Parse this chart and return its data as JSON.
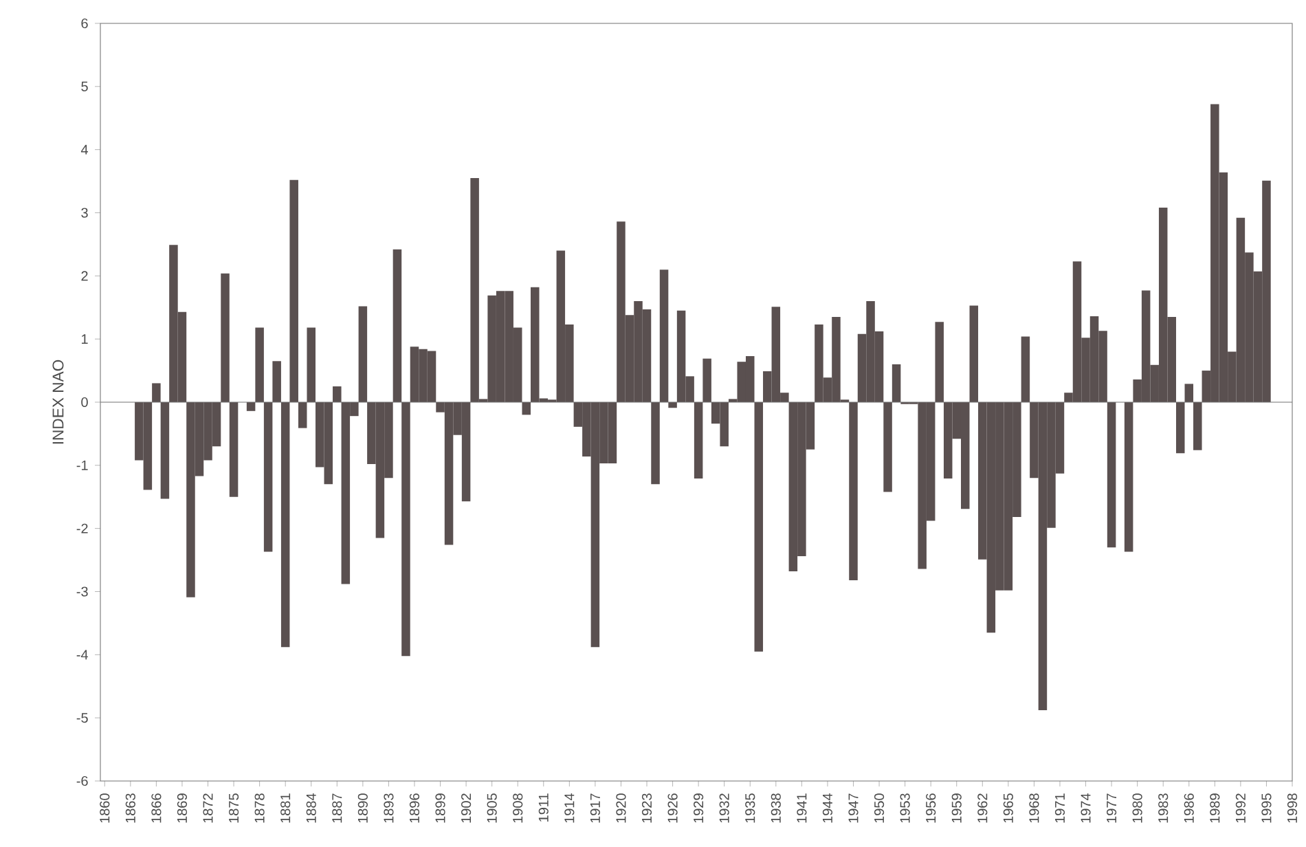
{
  "chart_data": {
    "type": "bar",
    "ylabel": "INDEX NAO",
    "color": "#5a5050",
    "x": [
      1864,
      1865,
      1866,
      1867,
      1868,
      1869,
      1870,
      1871,
      1872,
      1873,
      1874,
      1875,
      1876,
      1877,
      1878,
      1879,
      1880,
      1881,
      1882,
      1883,
      1884,
      1885,
      1886,
      1887,
      1888,
      1889,
      1890,
      1891,
      1892,
      1893,
      1894,
      1895,
      1896,
      1897,
      1898,
      1899,
      1900,
      1901,
      1902,
      1903,
      1904,
      1905,
      1906,
      1907,
      1908,
      1909,
      1910,
      1911,
      1912,
      1913,
      1914,
      1915,
      1916,
      1917,
      1918,
      1919,
      1920,
      1921,
      1922,
      1923,
      1924,
      1925,
      1926,
      1927,
      1928,
      1929,
      1930,
      1931,
      1932,
      1933,
      1934,
      1935,
      1936,
      1937,
      1938,
      1939,
      1940,
      1941,
      1942,
      1943,
      1944,
      1945,
      1946,
      1947,
      1948,
      1949,
      1950,
      1951,
      1952,
      1953,
      1954,
      1955,
      1956,
      1957,
      1958,
      1959,
      1960,
      1961,
      1962,
      1963,
      1964,
      1965,
      1966,
      1967,
      1968,
      1969,
      1970,
      1971,
      1972,
      1973,
      1974,
      1975,
      1976,
      1977,
      1978,
      1979,
      1980,
      1981,
      1982,
      1983,
      1984,
      1985,
      1986,
      1987,
      1988,
      1989,
      1990,
      1991,
      1992,
      1993,
      1994,
      1995
    ],
    "values": [
      -0.92,
      -1.39,
      0.3,
      -1.53,
      2.49,
      1.43,
      -3.09,
      -1.17,
      -0.92,
      -0.7,
      2.04,
      -1.5,
      0.0,
      -0.14,
      1.18,
      -2.37,
      0.65,
      -3.88,
      3.52,
      -0.41,
      1.18,
      -1.03,
      -1.3,
      0.25,
      -2.88,
      -0.22,
      1.52,
      -0.98,
      -2.15,
      -1.2,
      2.42,
      -4.02,
      0.88,
      0.84,
      0.81,
      -0.16,
      -2.26,
      -0.52,
      -1.57,
      3.55,
      0.05,
      1.69,
      1.76,
      1.76,
      1.18,
      -0.2,
      1.82,
      0.06,
      0.04,
      2.4,
      1.23,
      -0.39,
      -0.86,
      -3.88,
      -0.97,
      -0.97,
      2.86,
      1.38,
      1.6,
      1.47,
      -1.3,
      2.1,
      -0.09,
      1.45,
      0.41,
      -1.21,
      0.69,
      -0.34,
      -0.7,
      0.05,
      0.64,
      0.73,
      -3.95,
      0.49,
      1.51,
      0.15,
      -2.68,
      -2.44,
      -0.75,
      1.23,
      0.39,
      1.35,
      0.04,
      -2.82,
      1.08,
      1.6,
      1.12,
      -1.42,
      0.6,
      -0.03,
      -0.03,
      -2.64,
      -1.88,
      1.27,
      -1.21,
      -0.58,
      -1.69,
      1.53,
      -2.49,
      -3.65,
      -2.98,
      -2.98,
      -1.82,
      1.04,
      -1.2,
      -4.88,
      -1.99,
      -1.13,
      0.15,
      2.23,
      1.02,
      1.36,
      1.13,
      -2.3,
      0.0,
      -2.37,
      0.36,
      1.77,
      0.59,
      3.08,
      1.35,
      -0.81,
      0.29,
      -0.76,
      0.5,
      4.72,
      3.64,
      0.8,
      2.92,
      2.37,
      2.07,
      3.51
    ],
    "xlim": [
      1859.5,
      1998
    ],
    "xticks": [
      1860,
      1863,
      1866,
      1869,
      1872,
      1875,
      1878,
      1881,
      1884,
      1887,
      1890,
      1893,
      1896,
      1899,
      1902,
      1905,
      1908,
      1911,
      1914,
      1917,
      1920,
      1923,
      1926,
      1929,
      1932,
      1935,
      1938,
      1941,
      1944,
      1947,
      1950,
      1953,
      1956,
      1959,
      1962,
      1965,
      1968,
      1971,
      1974,
      1977,
      1980,
      1983,
      1986,
      1989,
      1992,
      1995,
      1998
    ],
    "ylim": [
      -6,
      6
    ],
    "yticks": [
      -6,
      -5,
      -4,
      -3,
      -2,
      -1,
      0,
      1,
      2,
      3,
      4,
      5,
      6
    ]
  }
}
